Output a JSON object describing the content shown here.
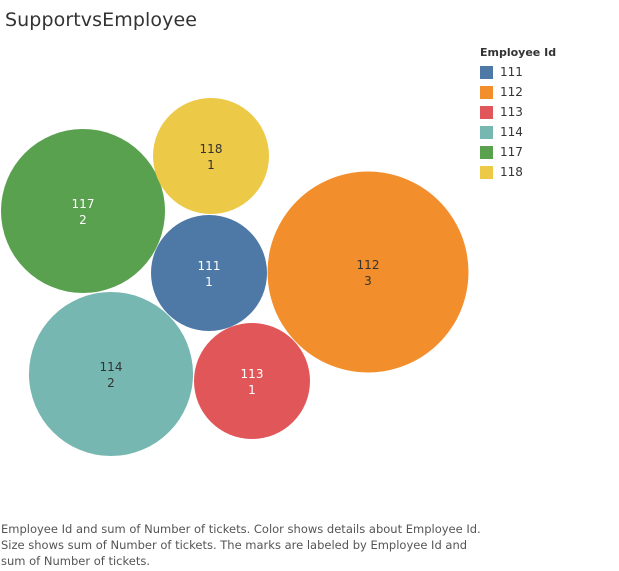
{
  "title": "SupportvsEmployee",
  "legend": {
    "title": "Employee Id"
  },
  "caption": "Employee Id and sum of Number of tickets.  Color shows details about Employee Id.  Size shows sum of Number of tickets.  The marks are labeled by Employee Id and sum of Number of tickets.",
  "chart_data": {
    "type": "bubble",
    "title": "SupportvsEmployee",
    "size_measure": "sum of Number of tickets",
    "color_dimension": "Employee Id",
    "series": [
      {
        "id": "111",
        "value": 1,
        "color": "#4e79a7",
        "label_color": "#ffffff"
      },
      {
        "id": "112",
        "value": 3,
        "color": "#f28e2b",
        "label_color": "#333333"
      },
      {
        "id": "113",
        "value": 1,
        "color": "#e15759",
        "label_color": "#ffffff"
      },
      {
        "id": "114",
        "value": 2,
        "color": "#76b7b2",
        "label_color": "#333333"
      },
      {
        "id": "117",
        "value": 2,
        "color": "#59a14f",
        "label_color": "#ffffff"
      },
      {
        "id": "118",
        "value": 1,
        "color": "#edc948",
        "label_color": "#333333"
      }
    ]
  }
}
